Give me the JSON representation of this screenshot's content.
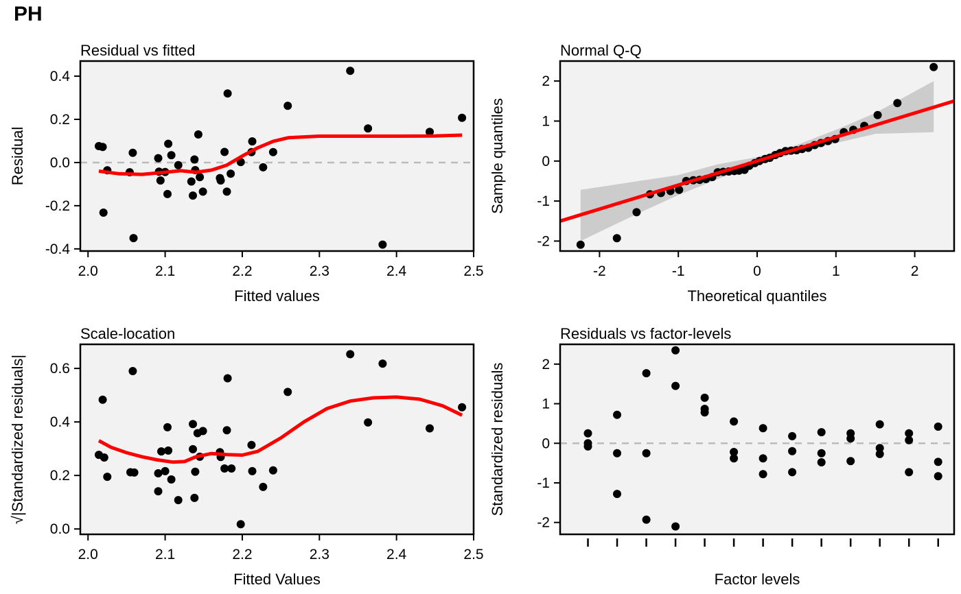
{
  "main_title": "PH",
  "colors": {
    "panel_bg": "#f2f2f2",
    "point": "#000000",
    "smooth": "#ff0000",
    "band": "#c8c8c8",
    "refline": "#bbbbbb"
  },
  "chart_data": [
    {
      "type": "scatter",
      "title": "Residual vs fitted",
      "xlabel": "Fitted values",
      "ylabel": "Residual",
      "xlim": [
        1.99,
        2.5
      ],
      "ylim": [
        -0.41,
        0.47
      ],
      "xticks": [
        2.0,
        2.1,
        2.2,
        2.3,
        2.4,
        2.5
      ],
      "xtick_labels": [
        "2.0",
        "2.1",
        "2.2",
        "2.3",
        "2.4",
        "2.5"
      ],
      "yticks": [
        -0.4,
        -0.2,
        0.0,
        0.2,
        0.4
      ],
      "ytick_labels": [
        "-0.4",
        "-0.2",
        "0.0",
        "0.2",
        "0.4"
      ],
      "reference_line": {
        "y": 0
      },
      "points": [
        [
          2.014,
          0.076
        ],
        [
          2.019,
          0.072
        ],
        [
          2.02,
          -0.232
        ],
        [
          2.025,
          -0.036
        ],
        [
          2.054,
          -0.045
        ],
        [
          2.058,
          0.045
        ],
        [
          2.059,
          -0.35
        ],
        [
          2.091,
          0.02
        ],
        [
          2.092,
          -0.042
        ],
        [
          2.094,
          -0.083
        ],
        [
          2.1,
          -0.044
        ],
        [
          2.103,
          -0.146
        ],
        [
          2.104,
          0.087
        ],
        [
          2.108,
          0.034
        ],
        [
          2.117,
          -0.012
        ],
        [
          2.134,
          -0.088
        ],
        [
          2.136,
          -0.153
        ],
        [
          2.138,
          0.014
        ],
        [
          2.139,
          -0.035
        ],
        [
          2.143,
          0.13
        ],
        [
          2.145,
          -0.068
        ],
        [
          2.149,
          -0.135
        ],
        [
          2.171,
          -0.072
        ],
        [
          2.172,
          -0.083
        ],
        [
          2.177,
          0.049
        ],
        [
          2.18,
          -0.135
        ],
        [
          2.181,
          0.32
        ],
        [
          2.185,
          -0.052
        ],
        [
          2.198,
          0.002
        ],
        [
          2.212,
          0.048
        ],
        [
          2.213,
          0.098
        ],
        [
          2.227,
          -0.022
        ],
        [
          2.24,
          0.048
        ],
        [
          2.259,
          0.263
        ],
        [
          2.34,
          0.425
        ],
        [
          2.363,
          0.158
        ],
        [
          2.382,
          -0.38
        ],
        [
          2.443,
          0.142
        ],
        [
          2.485,
          0.207
        ]
      ],
      "smooth_line": [
        [
          2.014,
          -0.04
        ],
        [
          2.04,
          -0.052
        ],
        [
          2.07,
          -0.055
        ],
        [
          2.1,
          -0.045
        ],
        [
          2.12,
          -0.038
        ],
        [
          2.14,
          -0.045
        ],
        [
          2.16,
          -0.035
        ],
        [
          2.18,
          -0.012
        ],
        [
          2.2,
          0.03
        ],
        [
          2.22,
          0.068
        ],
        [
          2.24,
          0.098
        ],
        [
          2.26,
          0.115
        ],
        [
          2.3,
          0.122
        ],
        [
          2.35,
          0.122
        ],
        [
          2.4,
          0.122
        ],
        [
          2.45,
          0.123
        ],
        [
          2.485,
          0.127
        ]
      ]
    },
    {
      "type": "scatter",
      "title": "Normal Q-Q",
      "xlabel": "Theoretical quantiles",
      "ylabel": "Sample quantiles",
      "xlim": [
        -2.5,
        2.5
      ],
      "ylim": [
        -2.25,
        2.5
      ],
      "xticks": [
        -2,
        -1,
        0,
        1,
        2
      ],
      "xtick_labels": [
        "-2",
        "-1",
        "0",
        "1",
        "2"
      ],
      "yticks": [
        -2,
        -1,
        0,
        1,
        2
      ],
      "ytick_labels": [
        "-2",
        "-1",
        "0",
        "1",
        "2"
      ],
      "fit_line": [
        [
          -2.5,
          -1.5
        ],
        [
          2.5,
          1.5
        ]
      ],
      "confidence_band": {
        "x": [
          -2.24,
          -1.5,
          -1.0,
          -0.5,
          0.0,
          0.5,
          1.0,
          1.5,
          2.24
        ],
        "lower": [
          -2.0,
          -1.3,
          -0.85,
          -0.45,
          -0.07,
          0.2,
          0.45,
          0.68,
          0.72
        ],
        "upper": [
          -0.72,
          -0.5,
          -0.35,
          -0.08,
          0.1,
          0.4,
          0.78,
          1.2,
          2.0
        ]
      },
      "points": [
        [
          -2.24,
          -2.09
        ],
        [
          -1.78,
          -1.93
        ],
        [
          -1.53,
          -1.28
        ],
        [
          -1.36,
          -0.83
        ],
        [
          -1.22,
          -0.8
        ],
        [
          -1.1,
          -0.75
        ],
        [
          -0.99,
          -0.72
        ],
        [
          -0.9,
          -0.5
        ],
        [
          -0.81,
          -0.48
        ],
        [
          -0.73,
          -0.47
        ],
        [
          -0.65,
          -0.45
        ],
        [
          -0.57,
          -0.4
        ],
        [
          -0.5,
          -0.28
        ],
        [
          -0.43,
          -0.27
        ],
        [
          -0.36,
          -0.26
        ],
        [
          -0.29,
          -0.25
        ],
        [
          -0.23,
          -0.24
        ],
        [
          -0.16,
          -0.22
        ],
        [
          -0.1,
          -0.12
        ],
        [
          -0.03,
          -0.05
        ],
        [
          0.03,
          0.0
        ],
        [
          0.1,
          0.05
        ],
        [
          0.16,
          0.08
        ],
        [
          0.23,
          0.15
        ],
        [
          0.29,
          0.2
        ],
        [
          0.36,
          0.25
        ],
        [
          0.43,
          0.26
        ],
        [
          0.5,
          0.27
        ],
        [
          0.57,
          0.3
        ],
        [
          0.65,
          0.33
        ],
        [
          0.73,
          0.4
        ],
        [
          0.81,
          0.45
        ],
        [
          0.9,
          0.5
        ],
        [
          0.99,
          0.55
        ],
        [
          1.1,
          0.72
        ],
        [
          1.22,
          0.78
        ],
        [
          1.36,
          0.88
        ],
        [
          1.53,
          1.15
        ],
        [
          1.78,
          1.45
        ],
        [
          2.24,
          2.35
        ]
      ]
    },
    {
      "type": "scatter",
      "title": "Scale-location",
      "xlabel": "Fitted Values",
      "ylabel": "√|Standardized residuals|",
      "xlim": [
        1.99,
        2.5
      ],
      "ylim": [
        -0.02,
        0.69
      ],
      "xticks": [
        2.0,
        2.1,
        2.2,
        2.3,
        2.4,
        2.5
      ],
      "xtick_labels": [
        "2.0",
        "2.1",
        "2.2",
        "2.3",
        "2.4",
        "2.5"
      ],
      "yticks": [
        0.0,
        0.2,
        0.4,
        0.6
      ],
      "ytick_labels": [
        "0.0",
        "0.2",
        "0.4",
        "0.6"
      ],
      "points": [
        [
          2.014,
          0.277
        ],
        [
          2.019,
          0.483
        ],
        [
          2.021,
          0.267
        ],
        [
          2.025,
          0.195
        ],
        [
          2.055,
          0.212
        ],
        [
          2.058,
          0.59
        ],
        [
          2.06,
          0.211
        ],
        [
          2.091,
          0.208
        ],
        [
          2.091,
          0.141
        ],
        [
          2.095,
          0.29
        ],
        [
          2.1,
          0.216
        ],
        [
          2.103,
          0.38
        ],
        [
          2.104,
          0.293
        ],
        [
          2.108,
          0.185
        ],
        [
          2.117,
          0.108
        ],
        [
          2.136,
          0.298
        ],
        [
          2.136,
          0.392
        ],
        [
          2.138,
          0.116
        ],
        [
          2.139,
          0.214
        ],
        [
          2.142,
          0.358
        ],
        [
          2.145,
          0.27
        ],
        [
          2.149,
          0.366
        ],
        [
          2.171,
          0.287
        ],
        [
          2.172,
          0.269
        ],
        [
          2.177,
          0.226
        ],
        [
          2.18,
          0.369
        ],
        [
          2.181,
          0.563
        ],
        [
          2.186,
          0.226
        ],
        [
          2.198,
          0.018
        ],
        [
          2.212,
          0.314
        ],
        [
          2.213,
          0.216
        ],
        [
          2.227,
          0.157
        ],
        [
          2.24,
          0.219
        ],
        [
          2.259,
          0.512
        ],
        [
          2.34,
          0.653
        ],
        [
          2.363,
          0.398
        ],
        [
          2.382,
          0.618
        ],
        [
          2.443,
          0.376
        ],
        [
          2.485,
          0.455
        ]
      ],
      "smooth_line": [
        [
          2.014,
          0.33
        ],
        [
          2.03,
          0.305
        ],
        [
          2.05,
          0.285
        ],
        [
          2.07,
          0.27
        ],
        [
          2.09,
          0.258
        ],
        [
          2.11,
          0.25
        ],
        [
          2.125,
          0.252
        ],
        [
          2.14,
          0.27
        ],
        [
          2.16,
          0.282
        ],
        [
          2.18,
          0.278
        ],
        [
          2.2,
          0.276
        ],
        [
          2.22,
          0.29
        ],
        [
          2.25,
          0.34
        ],
        [
          2.28,
          0.4
        ],
        [
          2.31,
          0.45
        ],
        [
          2.34,
          0.478
        ],
        [
          2.37,
          0.49
        ],
        [
          2.4,
          0.493
        ],
        [
          2.43,
          0.485
        ],
        [
          2.46,
          0.46
        ],
        [
          2.485,
          0.425
        ]
      ]
    },
    {
      "type": "scatter",
      "title": "Residuals vs factor-levels",
      "xlabel": "Factor levels",
      "ylabel": "Standardized residuals",
      "levels": 13,
      "ylim": [
        -2.3,
        2.5
      ],
      "yticks": [
        -2,
        -1,
        0,
        1,
        2
      ],
      "ytick_labels": [
        "-2",
        "-1",
        "0",
        "1",
        "2"
      ],
      "reference_line": {
        "y": 0
      },
      "points": [
        [
          1,
          0.25
        ],
        [
          1,
          0.0
        ],
        [
          1,
          -0.08
        ],
        [
          2,
          0.72
        ],
        [
          2,
          -0.25
        ],
        [
          2,
          -1.28
        ],
        [
          3,
          1.77
        ],
        [
          3,
          -0.25
        ],
        [
          3,
          -1.93
        ],
        [
          4,
          2.35
        ],
        [
          4,
          1.45
        ],
        [
          4,
          -2.1
        ],
        [
          5,
          1.15
        ],
        [
          5,
          0.87
        ],
        [
          5,
          0.78
        ],
        [
          6,
          0.55
        ],
        [
          6,
          -0.22
        ],
        [
          6,
          -0.38
        ],
        [
          7,
          0.38
        ],
        [
          7,
          -0.38
        ],
        [
          7,
          -0.78
        ],
        [
          8,
          0.18
        ],
        [
          8,
          -0.2
        ],
        [
          8,
          -0.73
        ],
        [
          9,
          0.28
        ],
        [
          9,
          -0.25
        ],
        [
          9,
          -0.48
        ],
        [
          10,
          0.25
        ],
        [
          10,
          0.12
        ],
        [
          10,
          -0.45
        ],
        [
          11,
          0.48
        ],
        [
          11,
          -0.12
        ],
        [
          11,
          -0.27
        ],
        [
          12,
          0.25
        ],
        [
          12,
          0.08
        ],
        [
          12,
          -0.73
        ],
        [
          13,
          0.42
        ],
        [
          13,
          -0.47
        ],
        [
          13,
          -0.83
        ]
      ]
    }
  ]
}
